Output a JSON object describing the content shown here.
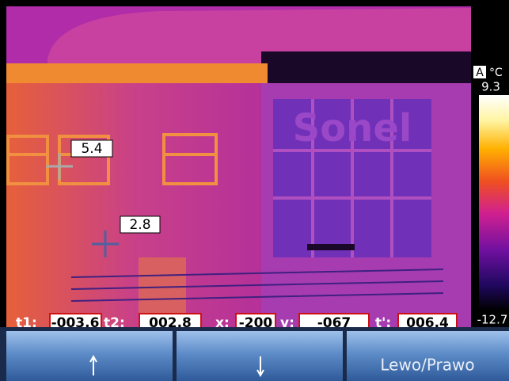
{
  "image": {
    "sign": "Sonel"
  },
  "measurement_points": [
    {
      "value": "5.4"
    },
    {
      "value": "2.8"
    }
  ],
  "scale": {
    "mode": "A",
    "unit": "°C",
    "max": "9.3",
    "min": "-12.7"
  },
  "readout": [
    {
      "label": "t1:",
      "value": "-003.6"
    },
    {
      "label": "t2:",
      "value": "002.8"
    },
    {
      "label": "x:",
      "value": "-200"
    },
    {
      "label": "y:",
      "value": "-067"
    },
    {
      "label": "t':",
      "value": "006.4"
    }
  ],
  "softkeys": {
    "third": "Lewo/Prawo"
  }
}
